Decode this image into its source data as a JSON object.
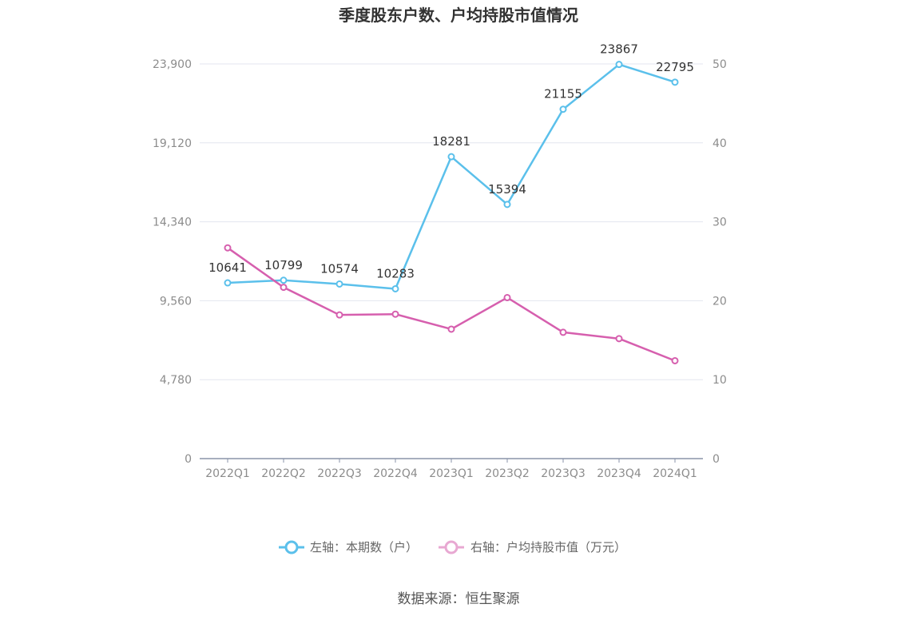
{
  "chart_data": {
    "type": "line",
    "title": "季度股东户数、户均持股市值情况",
    "categories": [
      "2022Q1",
      "2022Q2",
      "2022Q3",
      "2022Q4",
      "2023Q1",
      "2023Q2",
      "2023Q3",
      "2023Q4",
      "2024Q1"
    ],
    "left_axis": {
      "ticks": [
        "0",
        "4,780",
        "9,560",
        "14,340",
        "19,120",
        "23,900"
      ],
      "ylim": [
        0,
        23900
      ]
    },
    "right_axis": {
      "ticks": [
        "0",
        "10",
        "20",
        "30",
        "40",
        "50"
      ],
      "ylim": [
        0,
        50
      ]
    },
    "series": [
      {
        "name": "左轴：本期数（户）",
        "axis": "left",
        "color": "#5bc0eb",
        "values": [
          10641,
          10799,
          10574,
          10283,
          18281,
          15394,
          21155,
          23867,
          22795
        ],
        "labels": [
          "10641",
          "10799",
          "10574",
          "10283",
          "18281",
          "15394",
          "21155",
          "23867",
          "22795"
        ]
      },
      {
        "name": "右轴：户均持股市值（万元）",
        "axis": "right",
        "color": "#d65fae",
        "values": [
          26.7,
          21.7,
          18.2,
          18.3,
          16.4,
          20.4,
          16.0,
          15.2,
          12.4
        ]
      }
    ],
    "grid": true,
    "legend_position": "bottom"
  },
  "source": "数据来源：恒生聚源"
}
